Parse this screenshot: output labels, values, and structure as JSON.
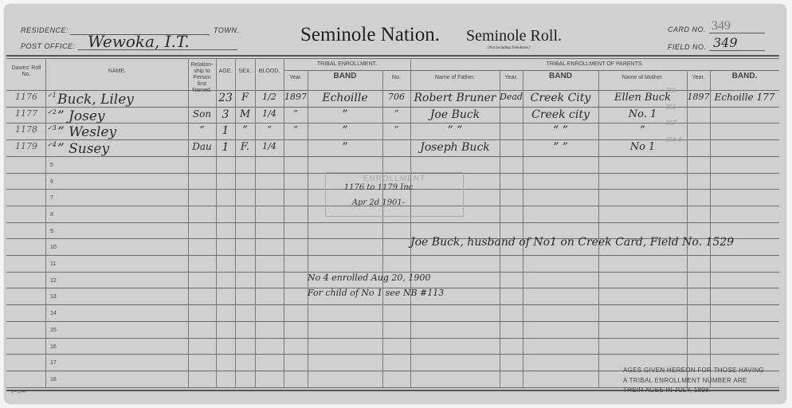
{
  "header": {
    "residence_label": "RESIDENCE:",
    "town_label": "TOWN.",
    "post_office_label": "POST OFFICE:",
    "post_office_value": "Wewoka, I.T.",
    "title_nation": "Seminole Nation.",
    "title_roll": "Seminole Roll.",
    "subtitle": "(Not including Freedmen.)",
    "card_no_label": "CARD NO.",
    "card_no_value": "349",
    "field_no_label": "FIELD NO.",
    "field_no_value": "349"
  },
  "columns": {
    "dawes": "Dawes' Roll No.",
    "name": "NAME.",
    "relation": "Relation-ship to Person first Named.",
    "age": "AGE.",
    "sex": "SEX.",
    "blood": "BLOOD.",
    "tribal_enrollment": "TRIBAL ENROLLMENT.",
    "year": "Year.",
    "band": "BAND",
    "no": "No.",
    "parents": "TRIBAL ENROLLMENT OF PARENTS.",
    "father": "Name of Father.",
    "father_year": "Year.",
    "father_band": "BAND",
    "mother": "Name of Mother.",
    "mother_year": "Year.",
    "mother_band": "BAND."
  },
  "rows": [
    {
      "dawes": "1176",
      "num": "✓1",
      "name": "Buck, Liley",
      "relation": "",
      "age": "23",
      "sex": "F",
      "blood": "1/2",
      "year": "1897",
      "band": "Echoille",
      "no": "706",
      "father": "Robert Bruner",
      "father_year": "Dead",
      "father_band": "Creek City",
      "mother": "Ellen Buck",
      "mother_pencil": "350",
      "mother_year": "1897",
      "mother_band": "Echoille 177"
    },
    {
      "dawes": "1177",
      "num": "✓2",
      "name": "”  Josey",
      "relation": "Son",
      "age": "3",
      "sex": "M",
      "blood": "1/4",
      "year": "”",
      "band": "”",
      "no": "”",
      "father": "Joe Buck",
      "father_year": "",
      "father_band": "Creek city",
      "mother": "No. 1",
      "mother_pencil": "351",
      "mother_year": "",
      "mother_band": ""
    },
    {
      "dawes": "1178",
      "num": "✓3",
      "name": "”  Wesley",
      "relation": "”",
      "age": "1",
      "sex": "”",
      "blood": "”",
      "year": "”",
      "band": "”",
      "no": "”",
      "father": "”  ”",
      "father_year": "",
      "father_band": "”  ”",
      "mother": "”",
      "mother_pencil": "357",
      "mother_year": "",
      "mother_band": ""
    },
    {
      "dawes": "1179",
      "num": "✓4",
      "name": "”  Susey",
      "relation": "Dau",
      "age": "1",
      "sex": "F.",
      "blood": "1/4",
      "year": "",
      "band": "”",
      "no": "",
      "father": "Joseph Buck",
      "father_year": "",
      "father_band": "”  ”",
      "mother": "No 1",
      "mother_pencil": "354-3",
      "mother_year": "",
      "mother_band": ""
    }
  ],
  "row_numbers": [
    "5",
    "6",
    "7",
    "8",
    "9",
    "10",
    "11",
    "12",
    "13",
    "14",
    "15",
    "16",
    "17",
    "18"
  ],
  "stamp": {
    "title": "ENROLLMENT",
    "line1": "1176 to 1179 Inc",
    "line2": "Apr 2d 1901-"
  },
  "annotations": {
    "husband_note": "Joe Buck, husband of No1 on Creek Card, Field No. 1529",
    "enrolled_note": "No 4 enrolled Aug 20, 1900",
    "child_note": "For child of No 1 see NB #113"
  },
  "footer": {
    "form_no": "6—D/44",
    "ages_note_1": "AGES GIVEN HEREON FOR THOSE HAVING",
    "ages_note_2": "A TRIBAL ENROLLMENT NUMBER ARE",
    "ages_note_3": "THEIR AGES IN JULY, 1898."
  }
}
